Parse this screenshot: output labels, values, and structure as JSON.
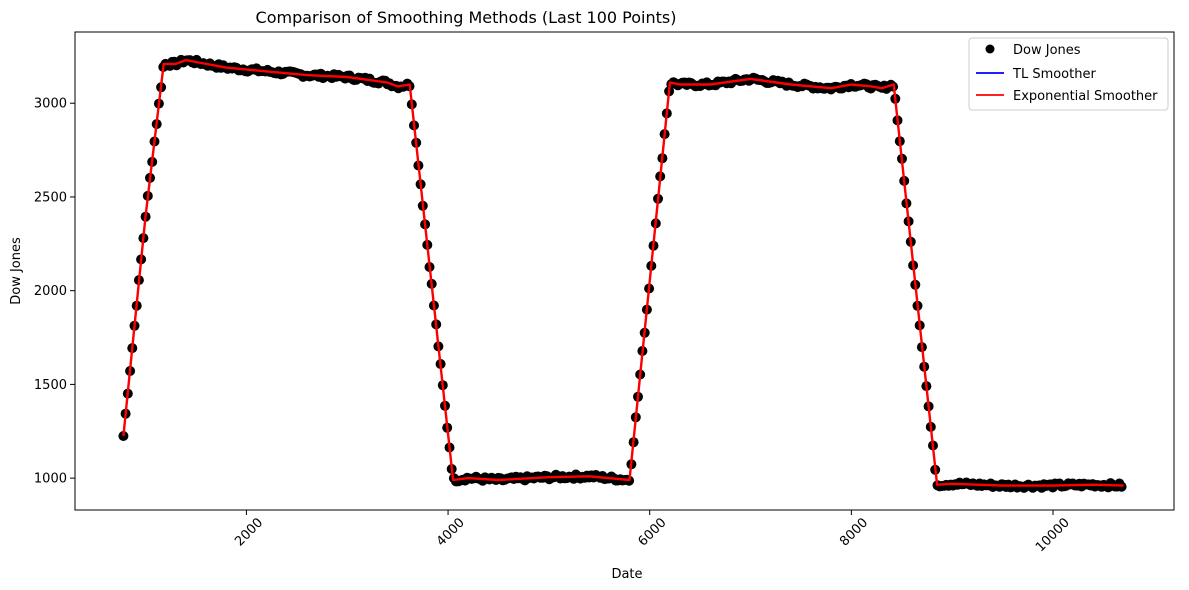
{
  "chart_data": {
    "type": "line",
    "title": "Comparison of Smoothing Methods (Last 100 Points)",
    "xlabel": "Date",
    "ylabel": "Dow Jones",
    "xlim": [
      300,
      11200
    ],
    "ylim": [
      830,
      3380
    ],
    "xticks": [
      2000,
      4000,
      6000,
      8000,
      10000
    ],
    "xtick_rotation": 45,
    "yticks": [
      1000,
      1500,
      2000,
      2500,
      3000
    ],
    "grid": false,
    "legend": "top-right",
    "legend_entries": [
      "Dow Jones",
      "TL Smoother",
      "Exponential Smoother"
    ],
    "series": [
      {
        "name": "Dow Jones",
        "kind": "scatter",
        "color": "#000000",
        "x": [
          780,
          1000,
          1180,
          1300,
          1400,
          1500,
          1800,
          2200,
          2600,
          3000,
          3400,
          3500,
          3620,
          4050,
          4200,
          4500,
          5000,
          5400,
          5800,
          6200,
          6300,
          6600,
          7000,
          7400,
          7800,
          8000,
          8200,
          8300,
          8420,
          8850,
          9000,
          9500,
          10000,
          10400,
          10700
        ],
        "y": [
          1225,
          2400,
          3210,
          3210,
          3230,
          3220,
          3190,
          3170,
          3150,
          3140,
          3110,
          3090,
          3100,
          990,
          1000,
          990,
          1005,
          1010,
          990,
          3110,
          3100,
          3100,
          3130,
          3100,
          3080,
          3100,
          3090,
          3080,
          3100,
          965,
          970,
          960,
          960,
          965,
          960
        ]
      },
      {
        "name": "TL Smoother",
        "kind": "line",
        "color": "#0000ff",
        "x": [
          780,
          1000,
          1180,
          1300,
          1400,
          1500,
          1800,
          2200,
          2600,
          3000,
          3400,
          3500,
          3620,
          4050,
          4200,
          4500,
          5000,
          5400,
          5800,
          6200,
          6300,
          6600,
          7000,
          7400,
          7800,
          8000,
          8200,
          8300,
          8420,
          8850,
          9000,
          9500,
          10000,
          10400,
          10700
        ],
        "y": [
          1225,
          2400,
          3210,
          3210,
          3230,
          3220,
          3190,
          3170,
          3150,
          3140,
          3110,
          3090,
          3100,
          990,
          1000,
          990,
          1005,
          1010,
          990,
          3110,
          3100,
          3100,
          3130,
          3100,
          3080,
          3100,
          3090,
          3080,
          3100,
          965,
          970,
          960,
          960,
          965,
          960
        ]
      },
      {
        "name": "Exponential Smoother",
        "kind": "line",
        "color": "#ff0000",
        "x": [
          780,
          1000,
          1180,
          1300,
          1400,
          1500,
          1800,
          2200,
          2600,
          3000,
          3400,
          3500,
          3620,
          4050,
          4200,
          4500,
          5000,
          5400,
          5800,
          6200,
          6300,
          6600,
          7000,
          7400,
          7800,
          8000,
          8200,
          8300,
          8420,
          8850,
          9000,
          9500,
          10000,
          10400,
          10700
        ],
        "y": [
          1225,
          2400,
          3210,
          3210,
          3230,
          3220,
          3190,
          3170,
          3150,
          3140,
          3110,
          3090,
          3100,
          990,
          1000,
          990,
          1005,
          1010,
          990,
          3110,
          3100,
          3100,
          3130,
          3100,
          3080,
          3100,
          3090,
          3080,
          3100,
          965,
          970,
          960,
          960,
          965,
          960
        ]
      }
    ]
  }
}
